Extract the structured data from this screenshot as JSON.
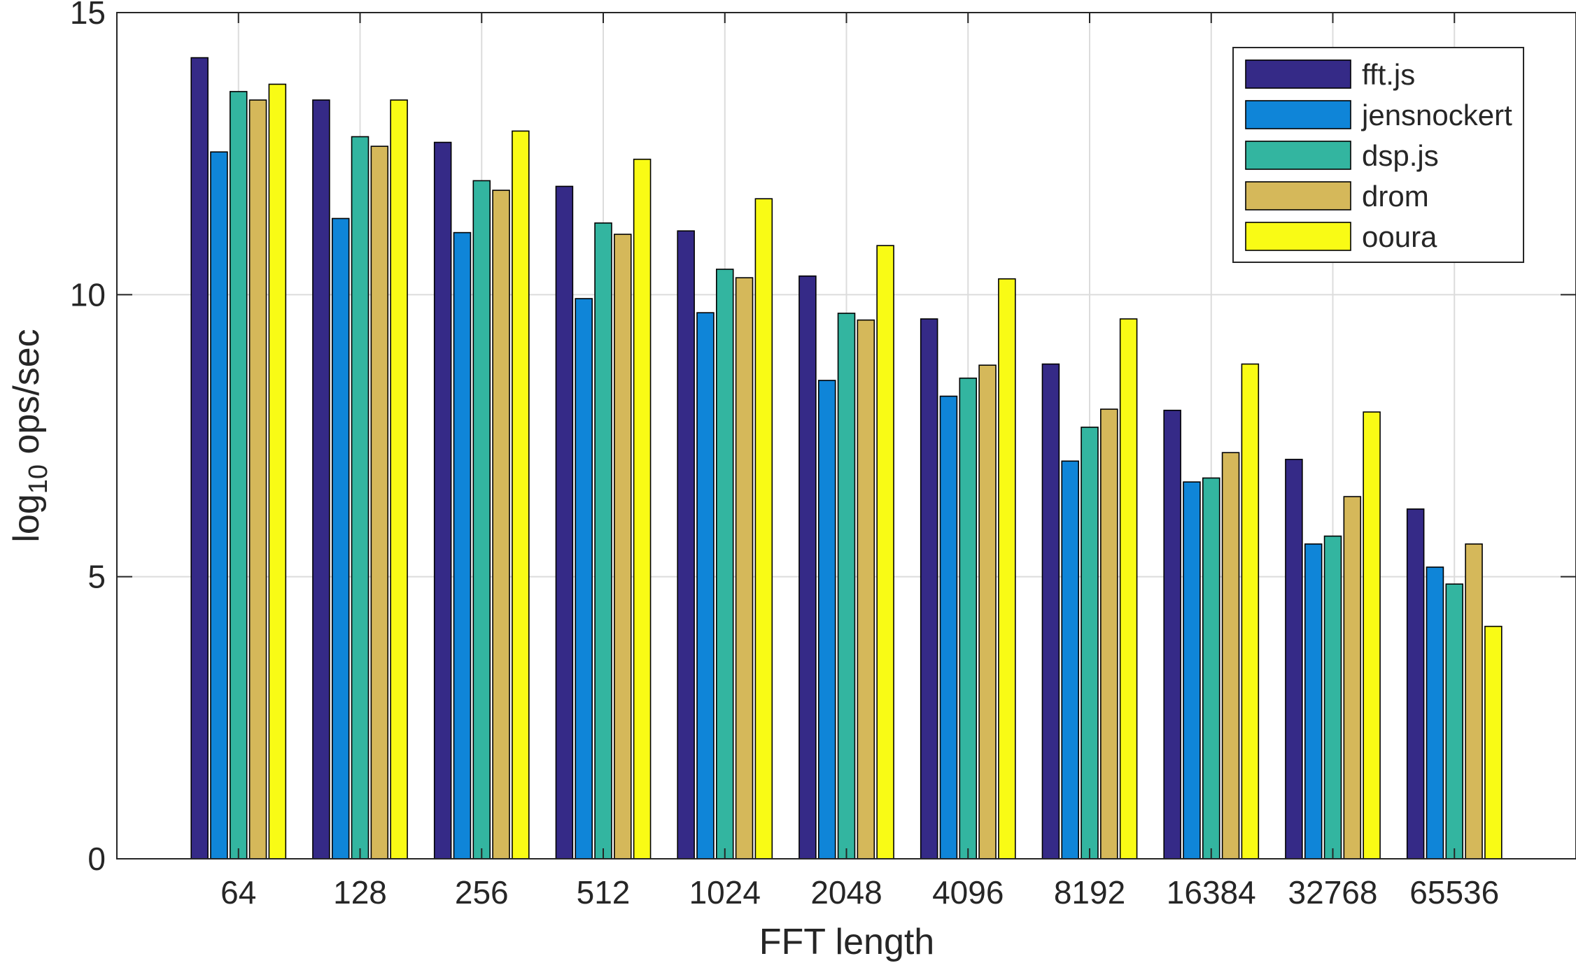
{
  "chart_data": {
    "type": "bar",
    "title": "",
    "xlabel": "FFT length",
    "ylabel_base": "log",
    "ylabel_sub": "10",
    "ylabel_rest": " ops/sec",
    "ylim": [
      0,
      15
    ],
    "yticks": [
      0,
      5,
      10,
      15
    ],
    "grid": true,
    "legend_position": "top-right",
    "categories": [
      "64",
      "128",
      "256",
      "512",
      "1024",
      "2048",
      "4096",
      "8192",
      "16384",
      "32768",
      "65536"
    ],
    "series": [
      {
        "name": "fft.js",
        "color": "#352a87",
        "values": [
          14.2,
          13.45,
          12.7,
          11.92,
          11.13,
          10.33,
          9.57,
          8.77,
          7.95,
          7.08,
          6.2
        ]
      },
      {
        "name": "jensnockert",
        "color": "#0f85d8",
        "values": [
          12.53,
          11.35,
          11.1,
          9.93,
          9.68,
          8.48,
          8.2,
          7.05,
          6.68,
          5.58,
          5.17
        ]
      },
      {
        "name": "dsp.js",
        "color": "#33b5a0",
        "values": [
          13.6,
          12.8,
          12.02,
          11.27,
          10.45,
          9.67,
          8.52,
          7.65,
          6.75,
          5.72,
          4.87
        ]
      },
      {
        "name": "drom",
        "color": "#d5b85a",
        "values": [
          13.45,
          12.63,
          11.85,
          11.07,
          10.3,
          9.55,
          8.75,
          7.97,
          7.2,
          6.42,
          5.58
        ]
      },
      {
        "name": "ooura",
        "color": "#f9fb15",
        "values": [
          13.73,
          13.45,
          12.9,
          12.4,
          11.7,
          10.87,
          10.28,
          9.57,
          8.77,
          7.92,
          4.12
        ]
      }
    ]
  }
}
